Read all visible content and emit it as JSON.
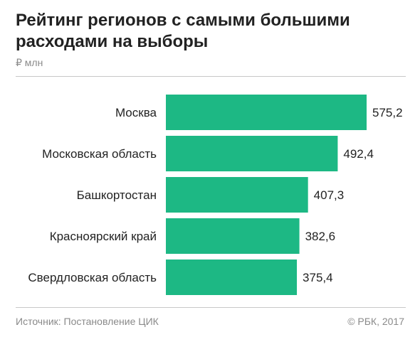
{
  "header": {
    "title": "Рейтинг регионов с самыми большими расходами на выборы",
    "unit": "₽ млн"
  },
  "footer": {
    "source": "Источник: Постановление ЦИК",
    "copyright": "© РБК, 2017"
  },
  "colors": {
    "bar": "#1db884",
    "text": "#222222",
    "muted": "#8a8a8a",
    "rule": "#c8c8c8"
  },
  "chart_data": {
    "type": "bar",
    "orientation": "horizontal",
    "categories": [
      "Москва",
      "Московская область",
      "Башкортостан",
      "Красноярский край",
      "Свердловская область"
    ],
    "values": [
      575.2,
      492.4,
      407.3,
      382.6,
      375.4
    ],
    "value_labels": [
      "575,2",
      "492,4",
      "407,3",
      "382,6",
      "375,4"
    ],
    "title": "Рейтинг регионов с самыми большими расходами на выборы",
    "xlabel": "",
    "ylabel": "",
    "unit": "₽ млн",
    "xlim": [
      0,
      575.2
    ],
    "grid": false,
    "legend": "none"
  }
}
